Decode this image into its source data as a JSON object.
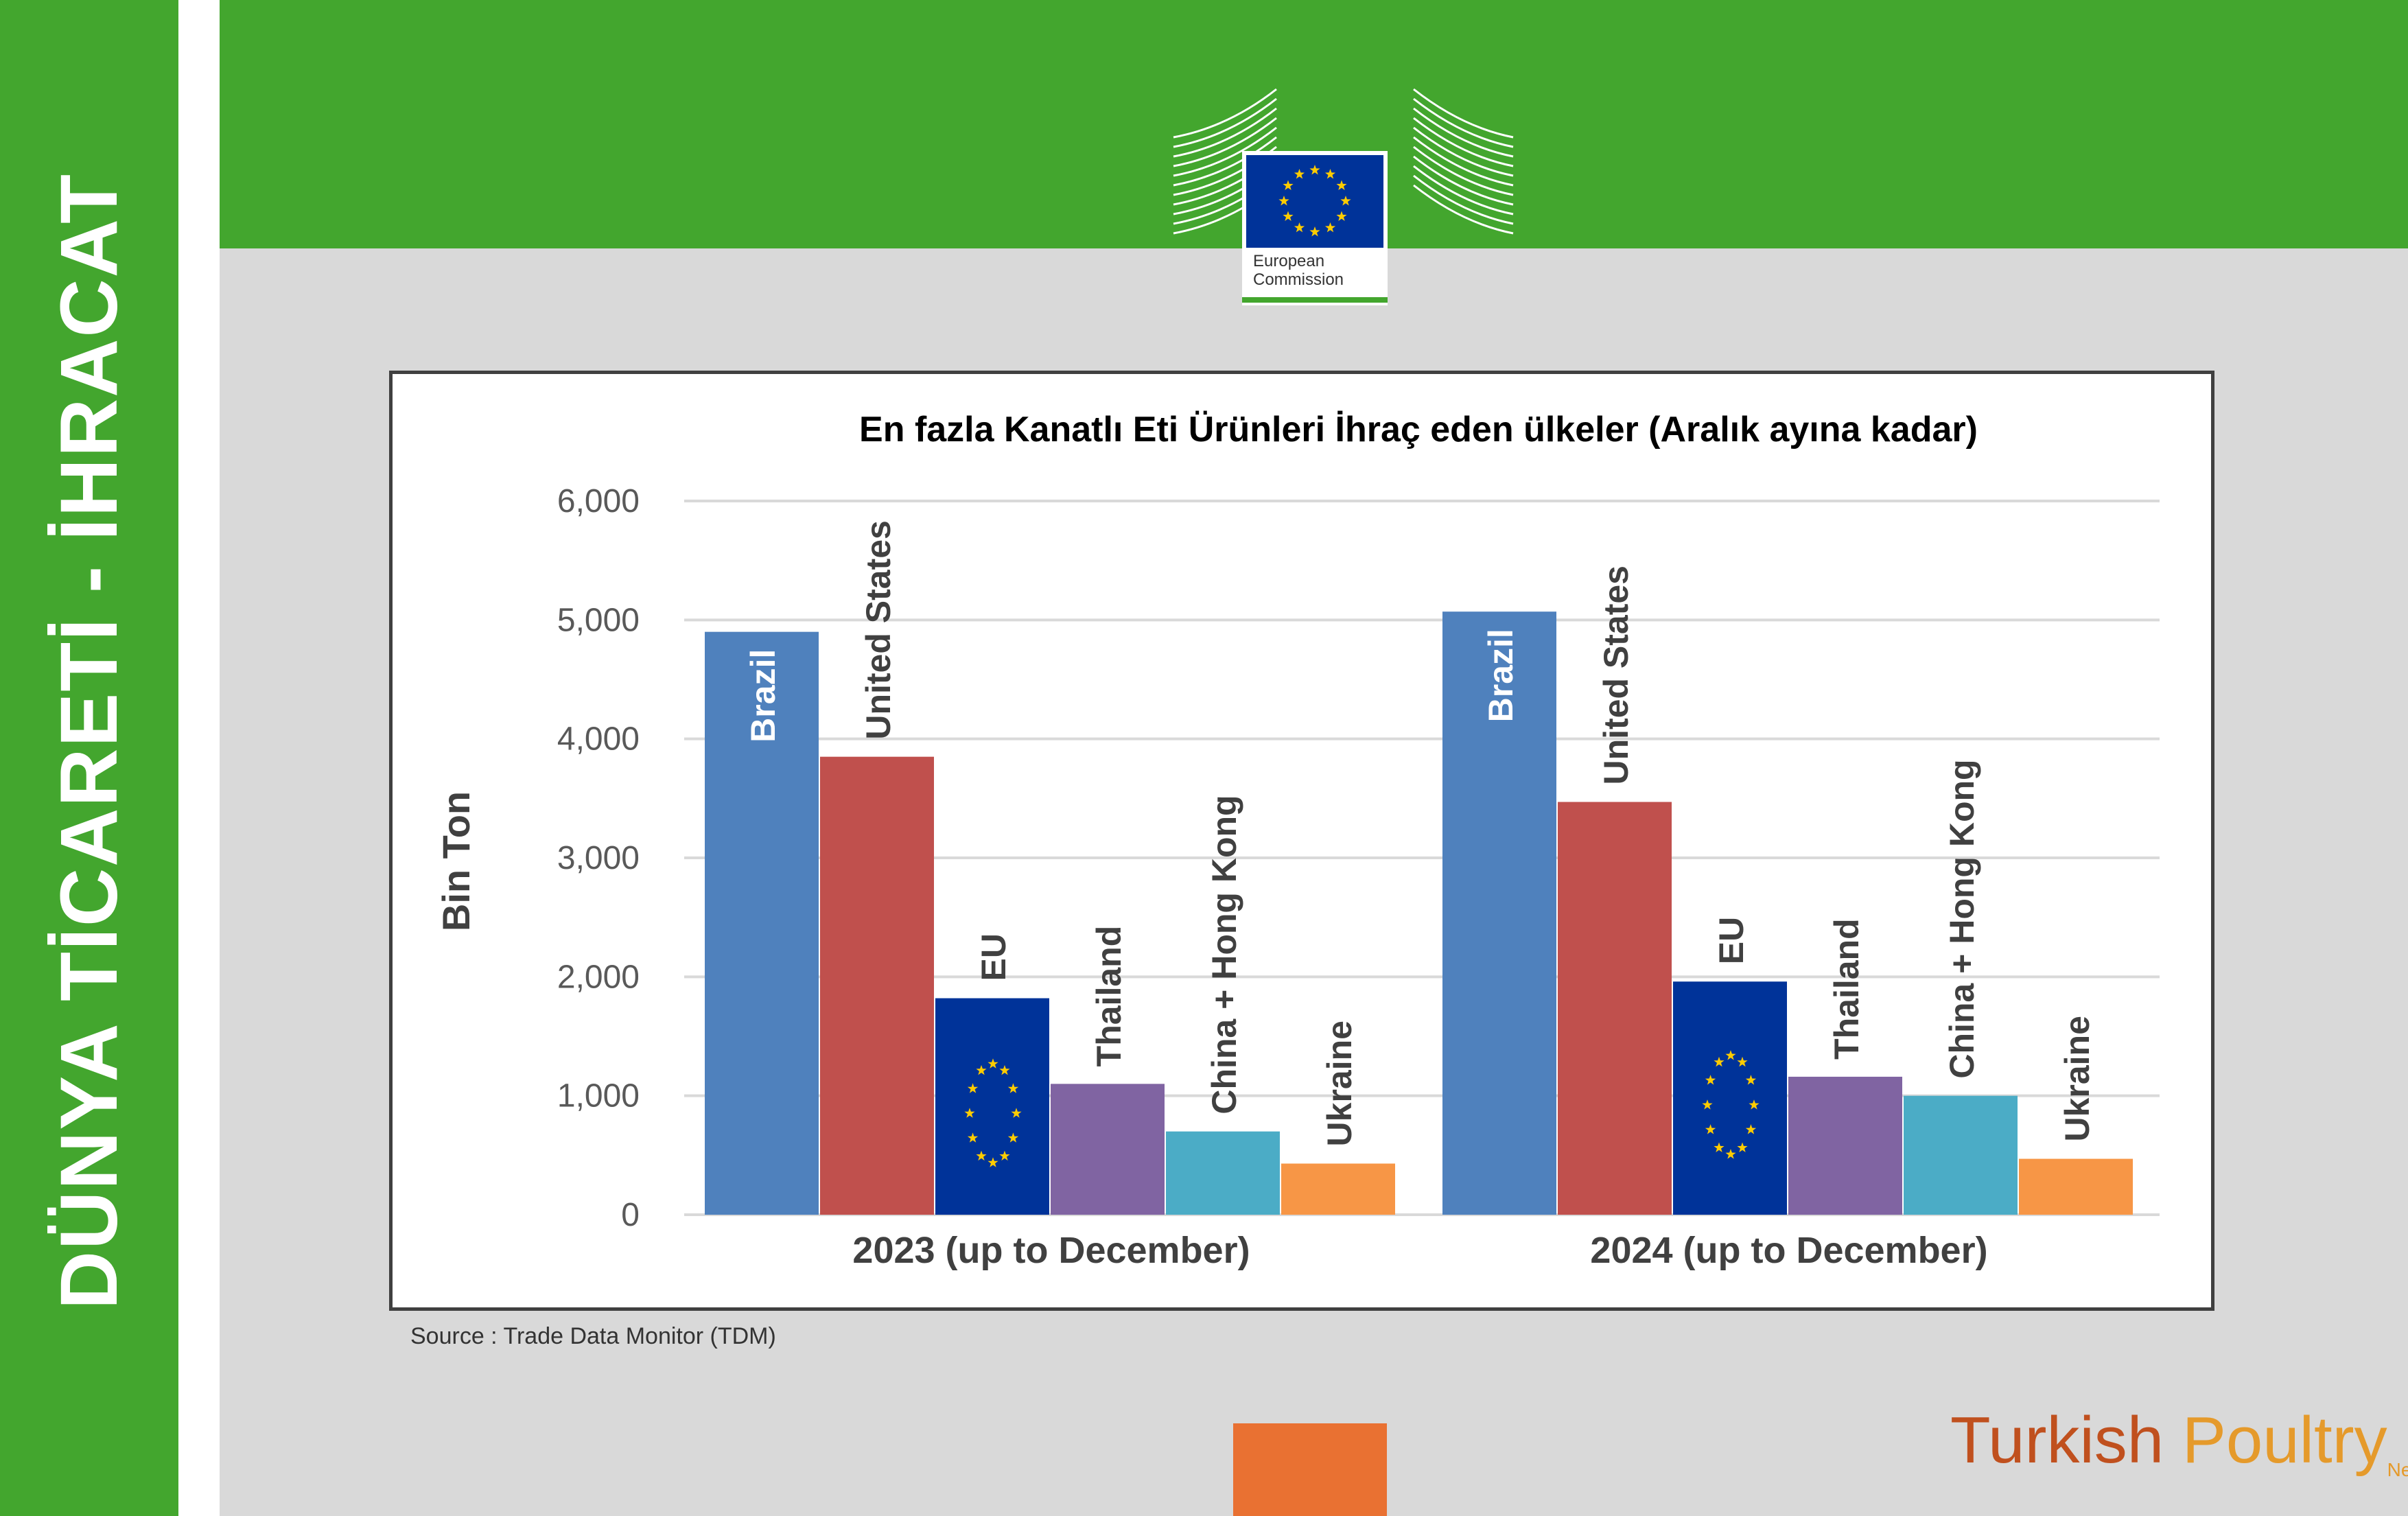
{
  "side_title": "DÜNYA TİCARETİ - İHRACAT",
  "logo": {
    "line1": "European",
    "line2": "Commission"
  },
  "source": "Source : Trade Data Monitor (TDM)",
  "brand": {
    "part1": "Turkish ",
    "part2": "Poultry",
    "suffix": "Net"
  },
  "colors": {
    "green": "#43a62e",
    "orange": "#e97132",
    "Brazil": "#4f81bd",
    "United States": "#c0504d",
    "EU": "#003399",
    "Thailand": "#8064a2",
    "China + Hong Kong": "#4bacc6",
    "Ukraine": "#f79646"
  },
  "chart_data": {
    "type": "bar",
    "title": "En fazla Kanatlı Eti Ürünleri İhraç eden ülkeler (Aralık ayına kadar)",
    "ylabel": "Bin Ton",
    "xlabel": "",
    "ylim": [
      0,
      6000
    ],
    "yticks": [
      "0",
      "1,000",
      "2,000",
      "3,000",
      "4,000",
      "5,000",
      "6,000"
    ],
    "grid": true,
    "groups": [
      {
        "label": "2023 (up to December)",
        "bars": [
          {
            "name": "Brazil",
            "value": 4900
          },
          {
            "name": "United States",
            "value": 3850
          },
          {
            "name": "EU",
            "value": 1820
          },
          {
            "name": "Thailand",
            "value": 1100
          },
          {
            "name": "China + Hong Kong",
            "value": 700
          },
          {
            "name": "Ukraine",
            "value": 430
          }
        ]
      },
      {
        "label": "2024 (up to December)",
        "bars": [
          {
            "name": "Brazil",
            "value": 5070
          },
          {
            "name": "United States",
            "value": 3470
          },
          {
            "name": "EU",
            "value": 1960
          },
          {
            "name": "Thailand",
            "value": 1160
          },
          {
            "name": "China + Hong Kong",
            "value": 1000
          },
          {
            "name": "Ukraine",
            "value": 470
          }
        ]
      }
    ]
  }
}
